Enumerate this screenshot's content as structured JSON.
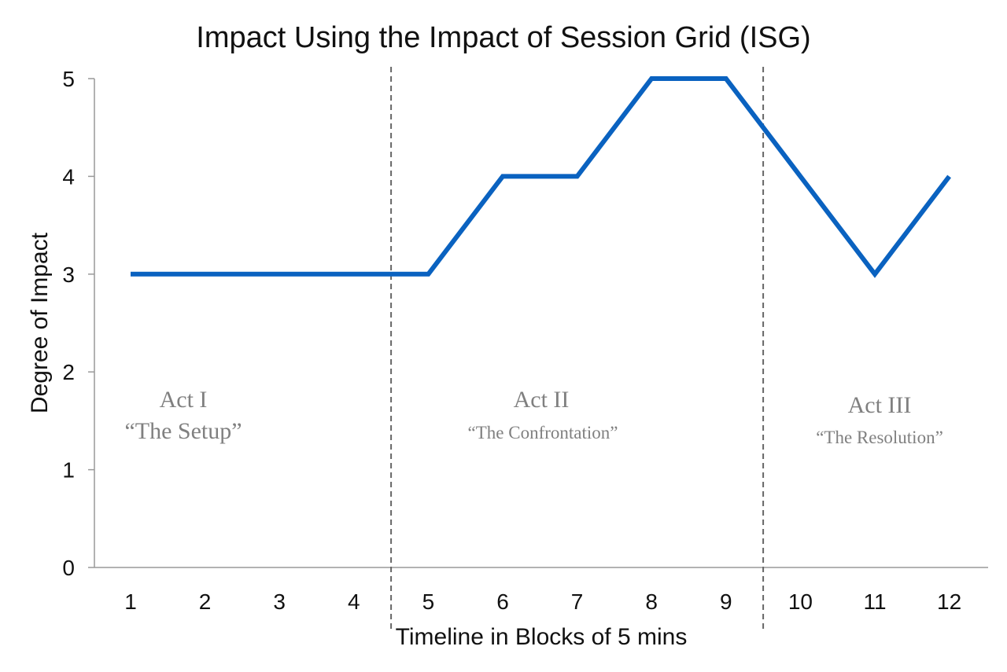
{
  "chart_data": {
    "type": "line",
    "title": "Impact Using the Impact of Session Grid (ISG)",
    "xlabel": "Timeline in Blocks of 5 mins",
    "ylabel": "Degree of Impact",
    "categories": [
      "1",
      "2",
      "3",
      "4",
      "5",
      "6",
      "7",
      "8",
      "9",
      "10",
      "11",
      "12"
    ],
    "yticks": [
      "0",
      "1",
      "2",
      "3",
      "4",
      "5"
    ],
    "ylim": [
      0,
      5
    ],
    "grid": false,
    "series": [
      {
        "values": [
          3,
          3,
          3,
          3,
          3,
          4,
          4,
          5,
          5,
          4,
          3,
          4
        ],
        "color": "#0a62c0"
      }
    ],
    "dividers": [
      {
        "after_x": 4,
        "style": "dashed",
        "color": "#666666"
      },
      {
        "after_x": 9,
        "style": "dashed",
        "color": "#666666"
      }
    ],
    "annotations": [
      {
        "label": "Act I",
        "sublabel": "“The Setup”",
        "color": "#808080"
      },
      {
        "label": "Act II",
        "sublabel": "“The Confrontation”",
        "color": "#808080"
      },
      {
        "label": "Act III",
        "sublabel": "“The Resolution”",
        "color": "#808080"
      }
    ]
  }
}
